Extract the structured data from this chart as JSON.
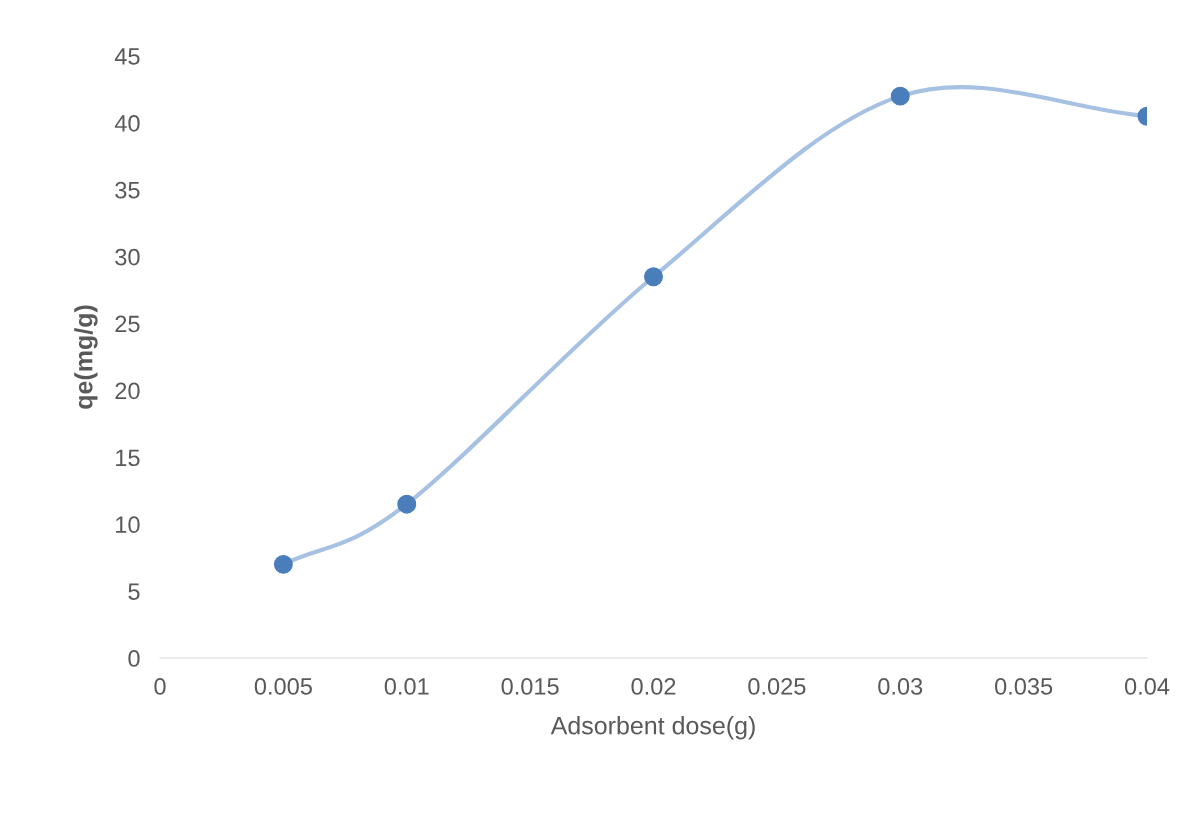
{
  "chart_data": {
    "type": "line",
    "xlabel": "Adsorbent dose(g)",
    "ylabel": "qe(mg/g)",
    "x": [
      0.005,
      0.01,
      0.02,
      0.03,
      0.04
    ],
    "series": [
      {
        "color": "#a7c1e2",
        "colors": [
          "#4a7ebb",
          "#4a7ebb",
          "#4a7ebb",
          "#4a7ebb",
          "#4a7ebb"
        ],
        "values": [
          7,
          11.5,
          28.5,
          42,
          40.5
        ]
      }
    ],
    "marker": "circle",
    "line_style": "solid",
    "grid": false,
    "xlim": [
      0,
      0.04
    ],
    "xticks": [
      0,
      0.005,
      0.01,
      0.015,
      0.02,
      0.025,
      0.03,
      0.035,
      0.04
    ],
    "ylim": [
      0,
      45
    ],
    "yticks": [
      0,
      5,
      10,
      15,
      20,
      25,
      30,
      35,
      40,
      45
    ]
  }
}
